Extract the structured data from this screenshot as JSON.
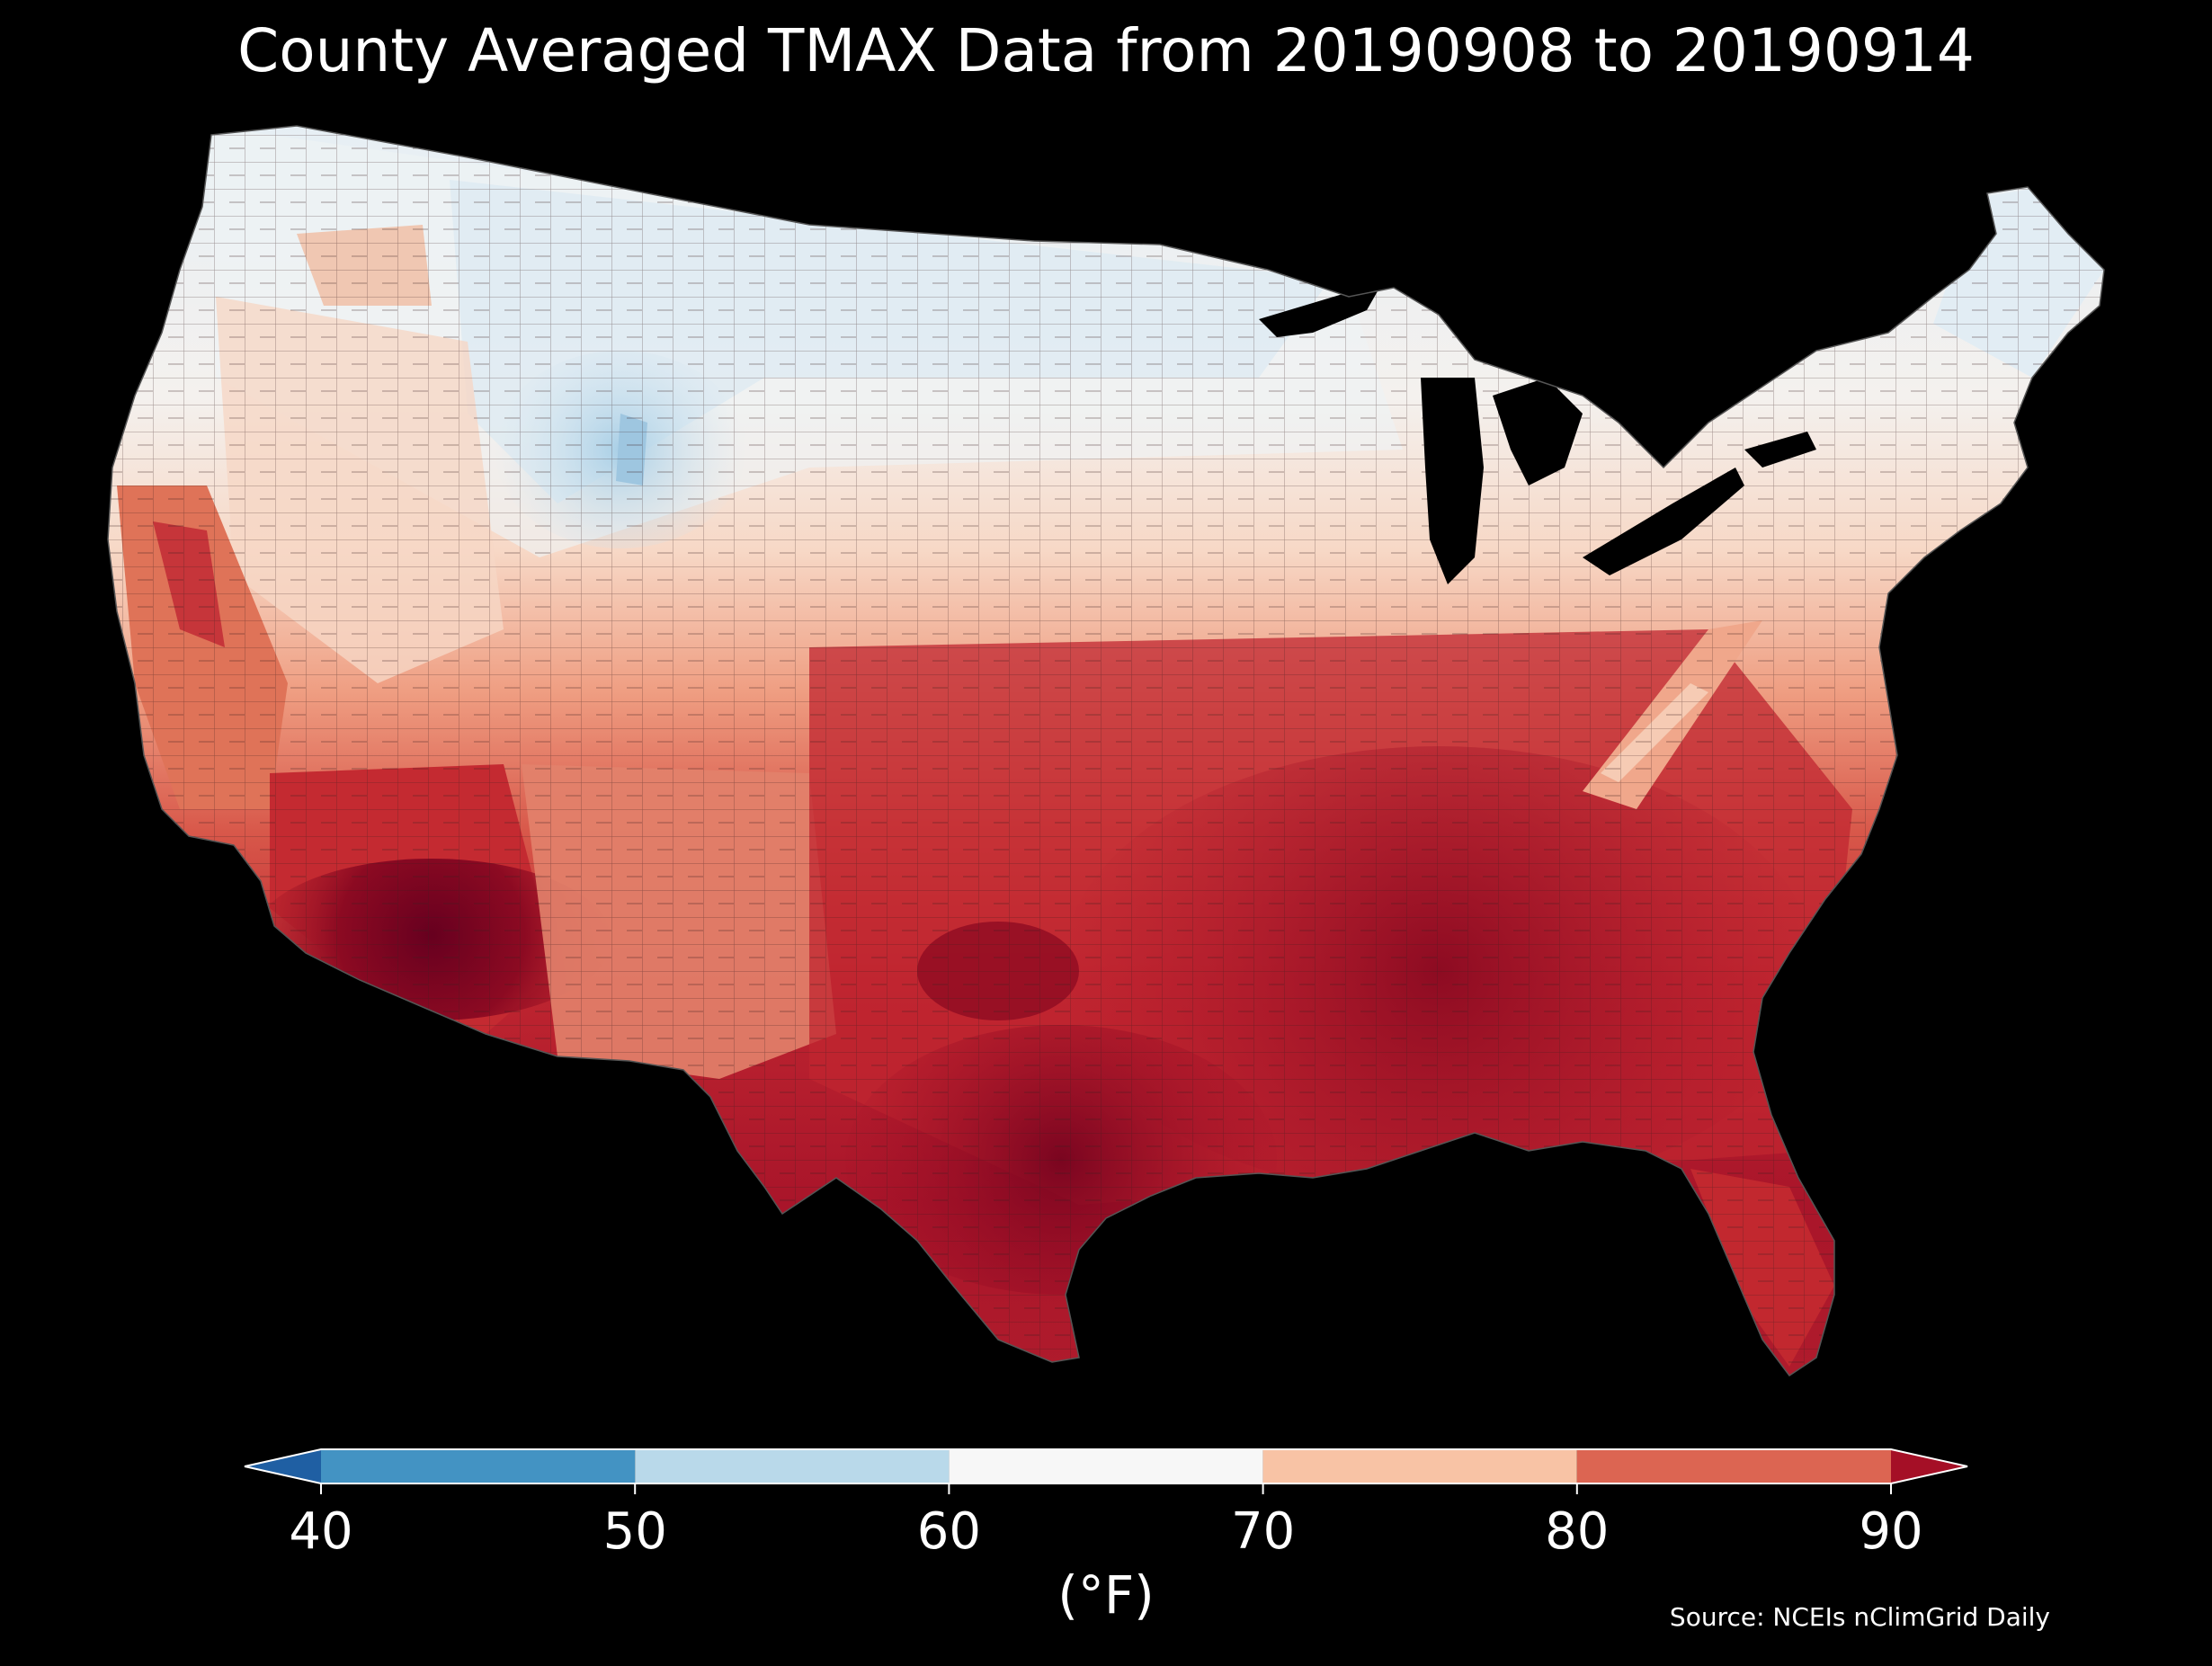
{
  "title": "County Averaged TMAX Data from 20190908 to 20190914",
  "colorbar": {
    "unit_label": "(°F)",
    "ticks": [
      "40",
      "50",
      "60",
      "70",
      "80",
      "90"
    ],
    "bins": [
      {
        "range": [
          40,
          50
        ],
        "color": "#4393c3"
      },
      {
        "range": [
          50,
          60
        ],
        "color": "#b9d9ea"
      },
      {
        "range": [
          60,
          70
        ],
        "color": "#f7f7f7"
      },
      {
        "range": [
          70,
          80
        ],
        "color": "#f8c3a5"
      },
      {
        "range": [
          80,
          90
        ],
        "color": "#dc6552"
      }
    ],
    "under_color": "#1f5fa3",
    "over_color": "#a50f26",
    "extend": "both"
  },
  "source": "Source: NCEIs nClimGrid Daily",
  "legend_placement": "bottom",
  "map_colors": {
    "cool_north": "#e3eef5",
    "pale_blue": "#c9e1ef",
    "white": "#f5f2f0",
    "peach": "#f6d3bf",
    "salmon": "#ef9d80",
    "red_orange": "#d9614f",
    "red": "#c0272d",
    "dark_red": "#98101f",
    "darkest": "#67001f"
  }
}
